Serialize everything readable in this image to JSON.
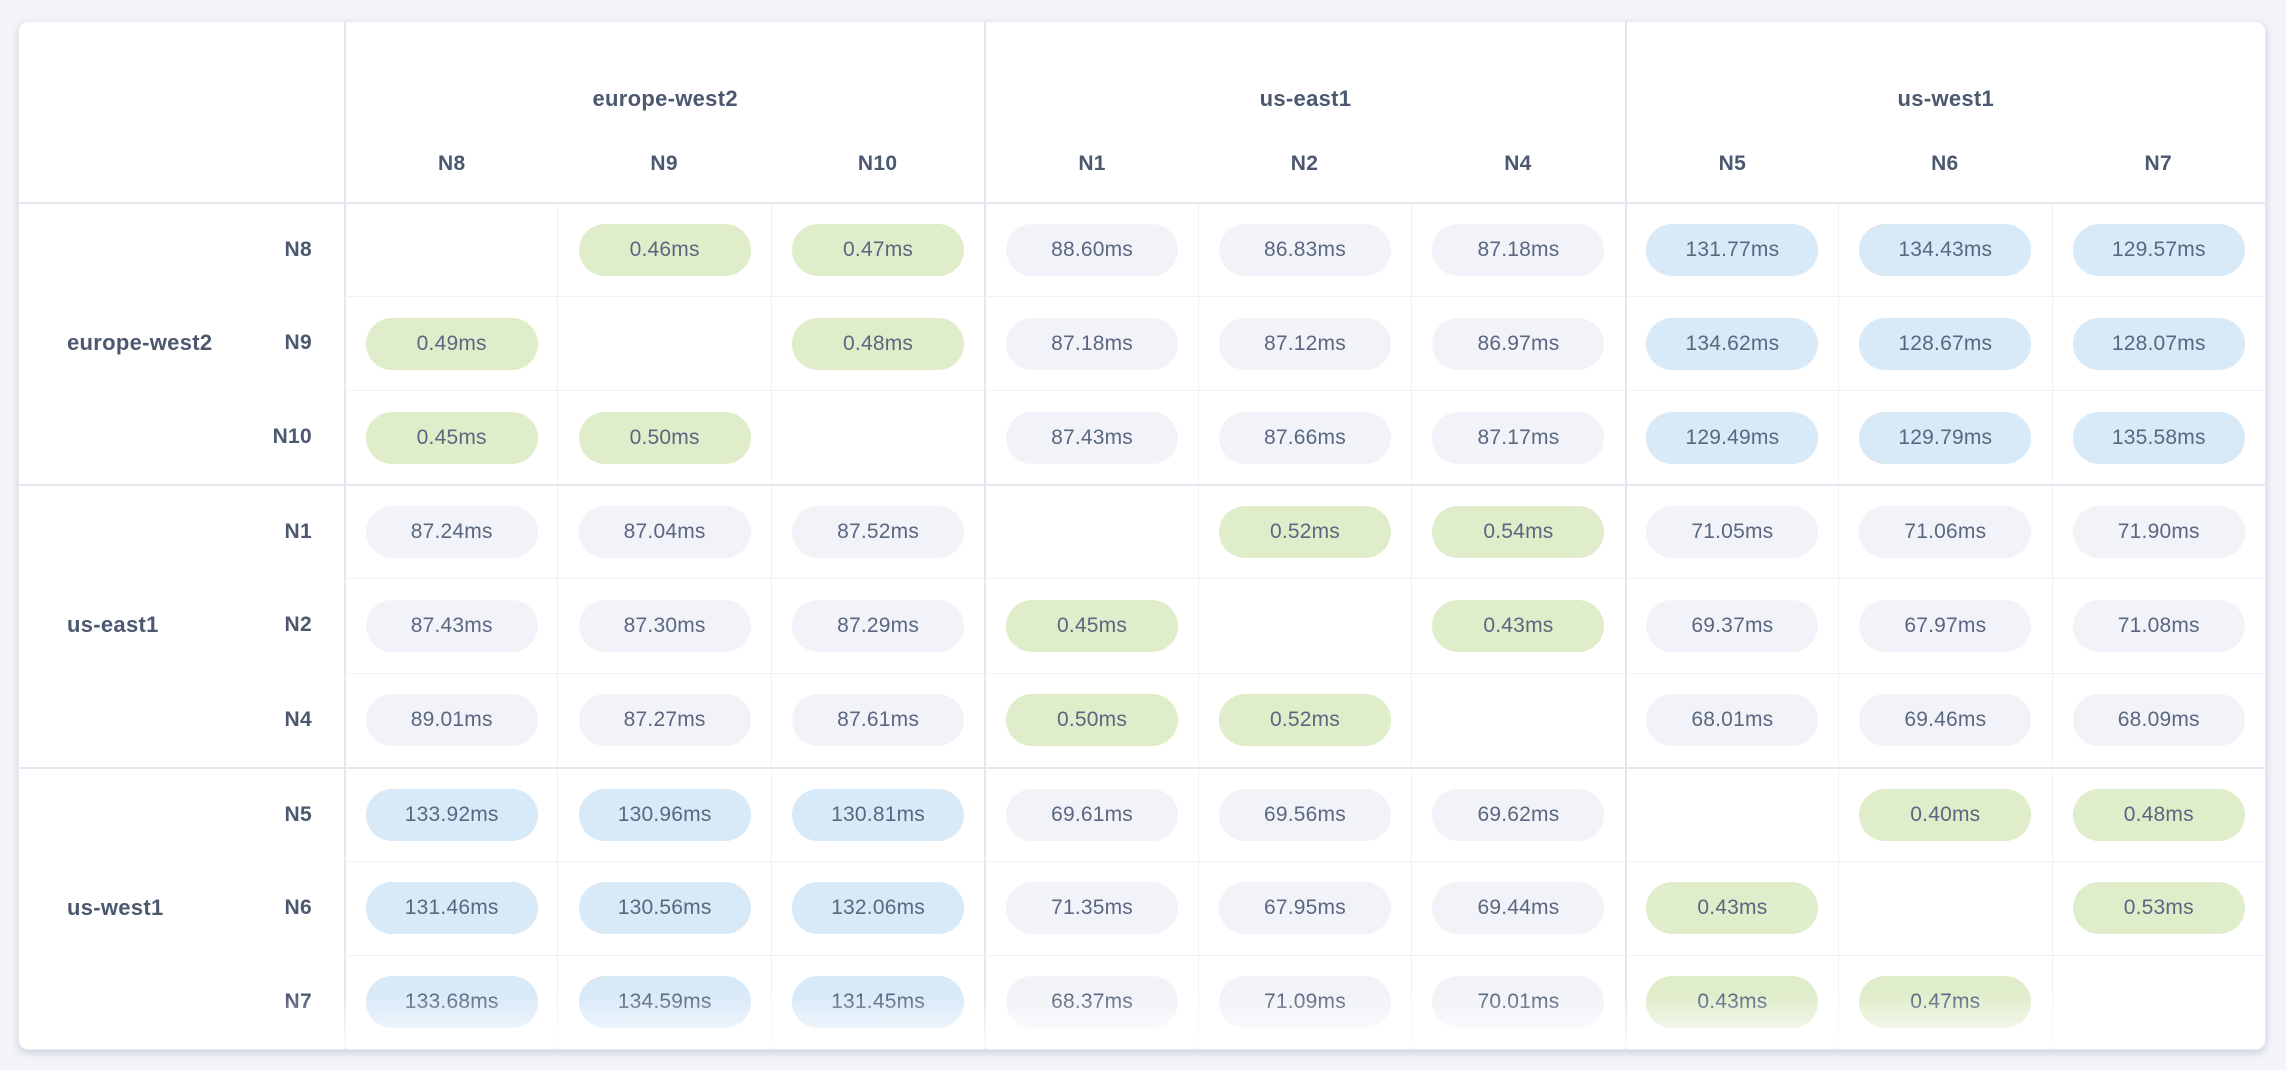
{
  "theme": {
    "page_background": "#f3f5f9",
    "table_background": "#ffffff",
    "group_line": "#e3e7ee",
    "inner_line": "#eef1f6",
    "header_text": "#4b586f",
    "cell_text": "#5a6780",
    "tier_green_bg": "#e0edcb",
    "tier_gray_bg": "#f1f3f8",
    "tier_blue_bg": "#d8e9f8"
  },
  "chart_data": {
    "type": "heatmap",
    "title": "",
    "unit": "ms",
    "value_suffix": "ms",
    "legend_position": "none",
    "grid": true,
    "region_groups": [
      {
        "region": "europe-west2",
        "nodes": [
          "N8",
          "N9",
          "N10"
        ]
      },
      {
        "region": "us-east1",
        "nodes": [
          "N1",
          "N2",
          "N4"
        ]
      },
      {
        "region": "us-west1",
        "nodes": [
          "N5",
          "N6",
          "N7"
        ]
      }
    ],
    "columns": [
      "N8",
      "N9",
      "N10",
      "N1",
      "N2",
      "N4",
      "N5",
      "N6",
      "N7"
    ],
    "rows": [
      "N8",
      "N9",
      "N10",
      "N1",
      "N2",
      "N4",
      "N5",
      "N6",
      "N7"
    ],
    "values_ms": [
      [
        null,
        0.46,
        0.47,
        88.6,
        86.83,
        87.18,
        131.77,
        134.43,
        129.57
      ],
      [
        0.49,
        null,
        0.48,
        87.18,
        87.12,
        86.97,
        134.62,
        128.67,
        128.07
      ],
      [
        0.45,
        0.5,
        null,
        87.43,
        87.66,
        87.17,
        129.49,
        129.79,
        135.58
      ],
      [
        87.24,
        87.04,
        87.52,
        null,
        0.52,
        0.54,
        71.05,
        71.06,
        71.9
      ],
      [
        87.43,
        87.3,
        87.29,
        0.45,
        null,
        0.43,
        69.37,
        67.97,
        71.08
      ],
      [
        89.01,
        87.27,
        87.61,
        0.5,
        0.52,
        null,
        68.01,
        69.46,
        68.09
      ],
      [
        133.92,
        130.96,
        130.81,
        69.61,
        69.56,
        69.62,
        null,
        0.4,
        0.48
      ],
      [
        131.46,
        130.56,
        132.06,
        71.35,
        67.95,
        69.44,
        0.43,
        null,
        0.53
      ],
      [
        133.68,
        134.59,
        131.45,
        68.37,
        71.09,
        70.01,
        0.43,
        0.47,
        null
      ]
    ],
    "color_tiers": [
      {
        "name": "green",
        "condition": "value < 1"
      },
      {
        "name": "gray",
        "condition": "1 <= value < 100"
      },
      {
        "name": "blue",
        "condition": "value >= 100"
      }
    ]
  }
}
